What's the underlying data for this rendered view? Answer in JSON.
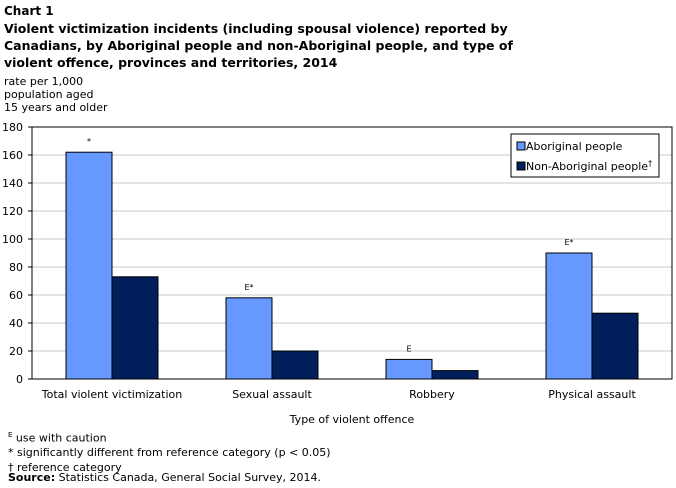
{
  "header": {
    "chart_number": "Chart 1",
    "title": "Violent victimization incidents (including spousal violence) reported by Canadians, by Aboriginal people and non-Aboriginal people, and type of violent offence, provinces and territories, 2014"
  },
  "y_unit_lines": [
    "rate per 1,000",
    "population aged",
    "15 years and older"
  ],
  "chart_data": {
    "type": "bar",
    "title": "Violent victimization incidents (including spousal violence) reported by Canadians, by Aboriginal people and non-Aboriginal people, and type of violent offence, provinces and territories, 2014",
    "xlabel": "Type of violent offence",
    "ylabel": "rate per 1,000 population aged 15 years and older",
    "ylim": [
      0,
      180
    ],
    "yticks": [
      0,
      20,
      40,
      60,
      80,
      100,
      120,
      140,
      160,
      180
    ],
    "grid": true,
    "legend_position": "top-right",
    "categories": [
      "Total violent victimization",
      "Sexual assault",
      "Robbery",
      "Physical assault"
    ],
    "series": [
      {
        "name": "Aboriginal people",
        "color": "#6699ff",
        "values": [
          162,
          58,
          14,
          90
        ],
        "flags": [
          "*",
          "E*",
          "E",
          "E*"
        ]
      },
      {
        "name": "Non-Aboriginal people",
        "name_superscript": "†",
        "color": "#001f5c",
        "values": [
          73,
          20,
          6,
          47
        ],
        "flags": [
          "",
          "",
          "",
          ""
        ]
      }
    ]
  },
  "footnotes": [
    {
      "symbol": "E",
      "text": " use with caution"
    },
    {
      "symbol": "*",
      "text": " significantly different from reference category (p < 0.05)"
    },
    {
      "symbol": "†",
      "text": " reference category"
    }
  ],
  "source": {
    "label": "Source:",
    "text": " Statistics Canada, General Social Survey, 2014."
  }
}
